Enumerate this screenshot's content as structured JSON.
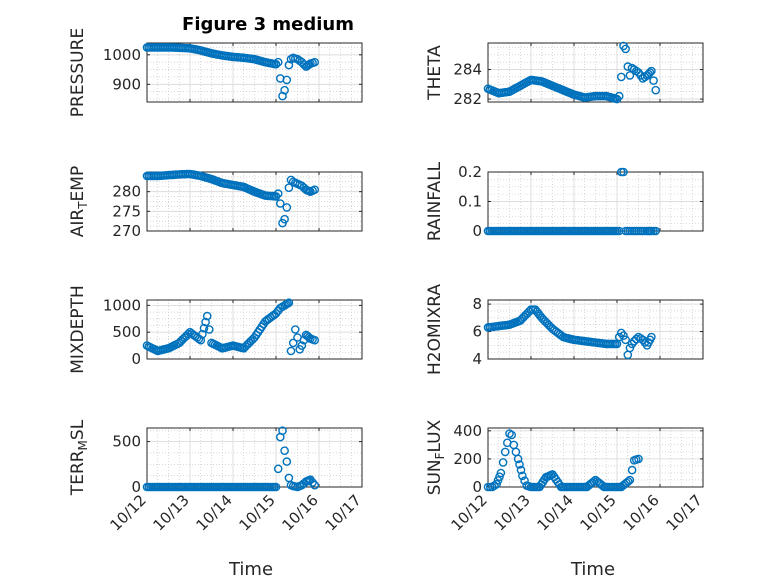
{
  "figure": {
    "title": "Figure 3 medium",
    "xlabel": "Time"
  },
  "chart_data": [
    {
      "type": "scatter",
      "ylabel": "PRESSURE",
      "xlim": [
        "10/12",
        "10/17"
      ],
      "ylim": [
        840,
        1040
      ],
      "yticks": [
        "900",
        "1000"
      ],
      "x": [
        12.0,
        12.25,
        12.5,
        12.75,
        13.0,
        13.25,
        13.5,
        13.75,
        14.0,
        14.25,
        14.5,
        14.75,
        15.0,
        15.05,
        15.1,
        15.15,
        15.2,
        15.25,
        15.3,
        15.35,
        15.4,
        15.5,
        15.6,
        15.7,
        15.8,
        15.9
      ],
      "y": [
        1025,
        1025,
        1025,
        1024,
        1022,
        1015,
        1005,
        998,
        993,
        990,
        985,
        975,
        968,
        975,
        920,
        860,
        880,
        915,
        965,
        985,
        990,
        985,
        975,
        960,
        970,
        975
      ]
    },
    {
      "type": "scatter",
      "ylabel": "THETA",
      "xlim": [
        "10/12",
        "10/17"
      ],
      "ylim": [
        281.8,
        285.8
      ],
      "yticks": [
        "282",
        "284"
      ],
      "x": [
        12.0,
        12.25,
        12.5,
        12.75,
        13.0,
        13.25,
        13.5,
        13.75,
        14.0,
        14.25,
        14.5,
        14.75,
        15.0,
        15.05,
        15.1,
        15.15,
        15.2,
        15.25,
        15.3,
        15.35,
        15.4,
        15.5,
        15.6,
        15.7,
        15.8,
        15.9
      ],
      "y": [
        282.7,
        282.4,
        282.5,
        282.9,
        283.3,
        283.2,
        282.9,
        282.6,
        282.3,
        282.1,
        282.2,
        282.2,
        282.0,
        282.2,
        283.5,
        285.6,
        285.4,
        284.2,
        283.6,
        284.1,
        284.0,
        283.8,
        283.4,
        283.6,
        283.9,
        282.6
      ]
    },
    {
      "type": "scatter",
      "ylabel": "AIR_TEMP",
      "xlim": [
        "10/12",
        "10/17"
      ],
      "ylim": [
        270,
        285
      ],
      "yticks": [
        "270",
        "275",
        "280"
      ],
      "x": [
        12.0,
        12.25,
        12.5,
        12.75,
        13.0,
        13.25,
        13.5,
        13.75,
        14.0,
        14.25,
        14.5,
        14.75,
        15.0,
        15.05,
        15.1,
        15.15,
        15.2,
        15.25,
        15.3,
        15.35,
        15.4,
        15.5,
        15.6,
        15.7,
        15.8,
        15.9
      ],
      "y": [
        284,
        284,
        284.2,
        284.4,
        284.5,
        284,
        283.2,
        282.2,
        281.7,
        281.2,
        280,
        279,
        278.8,
        279.5,
        277,
        272,
        273,
        276,
        281,
        283,
        282.5,
        282,
        281.5,
        280.5,
        280,
        280.5
      ]
    },
    {
      "type": "scatter",
      "ylabel": "RAINFALL",
      "xlim": [
        "10/12",
        "10/17"
      ],
      "ylim": [
        0,
        0.2
      ],
      "yticks": [
        "0",
        "0.1",
        "0.2"
      ],
      "x": [
        12.0,
        12.25,
        12.5,
        12.75,
        13.0,
        13.25,
        13.5,
        13.75,
        14.0,
        14.25,
        14.5,
        14.75,
        15.0,
        15.05,
        15.1,
        15.15,
        15.2,
        15.25,
        15.3,
        15.35,
        15.4,
        15.5,
        15.6,
        15.7,
        15.8,
        15.9
      ],
      "y": [
        0,
        0,
        0,
        0,
        0,
        0,
        0,
        0,
        0,
        0,
        0,
        0,
        0,
        0,
        0.2,
        0.2,
        0,
        0,
        0,
        0,
        0,
        0,
        0,
        0,
        0,
        0
      ]
    },
    {
      "type": "scatter",
      "ylabel": "MIXDEPTH",
      "xlim": [
        "10/12",
        "10/17"
      ],
      "ylim": [
        0,
        1100
      ],
      "yticks": [
        "0",
        "500",
        "1000"
      ],
      "x": [
        12.0,
        12.25,
        12.5,
        12.75,
        13.0,
        13.25,
        13.4,
        13.5,
        13.75,
        14.0,
        14.25,
        14.5,
        14.75,
        15.0,
        15.1,
        15.2,
        15.3,
        15.35,
        15.4,
        15.5,
        15.6,
        15.7,
        15.8,
        15.9,
        15.45,
        15.55
      ],
      "y": [
        250,
        150,
        200,
        300,
        500,
        350,
        800,
        300,
        200,
        250,
        200,
        400,
        700,
        850,
        950,
        1000,
        1050,
        150,
        300,
        400,
        250,
        450,
        380,
        350,
        550,
        180
      ]
    },
    {
      "type": "scatter",
      "ylabel": "H2OMIXRA",
      "xlim": [
        "10/12",
        "10/17"
      ],
      "ylim": [
        4,
        8.3
      ],
      "yticks": [
        "4",
        "6",
        "8"
      ],
      "x": [
        12.0,
        12.25,
        12.5,
        12.75,
        13.0,
        13.1,
        13.25,
        13.5,
        13.75,
        14.0,
        14.25,
        14.5,
        14.75,
        15.0,
        15.05,
        15.1,
        15.15,
        15.2,
        15.25,
        15.3,
        15.35,
        15.4,
        15.5,
        15.6,
        15.7,
        15.8
      ],
      "y": [
        6.3,
        6.4,
        6.5,
        6.8,
        7.6,
        7.6,
        7.0,
        6.2,
        5.6,
        5.4,
        5.3,
        5.2,
        5.1,
        5.1,
        5.6,
        5.9,
        5.7,
        5.4,
        4.3,
        4.8,
        5.1,
        5.3,
        5.6,
        5.4,
        5.0,
        5.6
      ]
    },
    {
      "type": "scatter",
      "ylabel": "TERR_MSL",
      "xlim": [
        "10/12",
        "10/17"
      ],
      "ylim": [
        0,
        650
      ],
      "yticks": [
        "0",
        "500"
      ],
      "x": [
        12.0,
        12.25,
        12.5,
        12.75,
        13.0,
        13.25,
        13.5,
        13.75,
        14.0,
        14.25,
        14.5,
        14.75,
        15.0,
        15.05,
        15.1,
        15.15,
        15.2,
        15.25,
        15.3,
        15.35,
        15.4,
        15.5,
        15.6,
        15.7,
        15.8,
        15.9
      ],
      "y": [
        0,
        0,
        0,
        0,
        0,
        0,
        0,
        0,
        0,
        0,
        0,
        0,
        0,
        200,
        550,
        620,
        400,
        280,
        100,
        20,
        10,
        0,
        20,
        60,
        80,
        20
      ]
    },
    {
      "type": "scatter",
      "ylabel": "SUN_FLUX",
      "xlim": [
        "10/12",
        "10/17"
      ],
      "ylim": [
        0,
        420
      ],
      "yticks": [
        "0",
        "200",
        "400"
      ],
      "x": [
        12.0,
        12.1,
        12.2,
        12.3,
        12.4,
        12.5,
        12.55,
        12.6,
        12.7,
        12.8,
        12.9,
        13.0,
        13.2,
        13.35,
        13.5,
        13.7,
        13.9,
        14.1,
        14.3,
        14.5,
        14.7,
        14.9,
        15.1,
        15.3,
        15.4,
        15.5
      ],
      "y": [
        0,
        0,
        20,
        100,
        250,
        380,
        370,
        300,
        200,
        80,
        10,
        0,
        0,
        70,
        90,
        0,
        0,
        0,
        0,
        50,
        0,
        0,
        0,
        50,
        190,
        200
      ]
    }
  ]
}
